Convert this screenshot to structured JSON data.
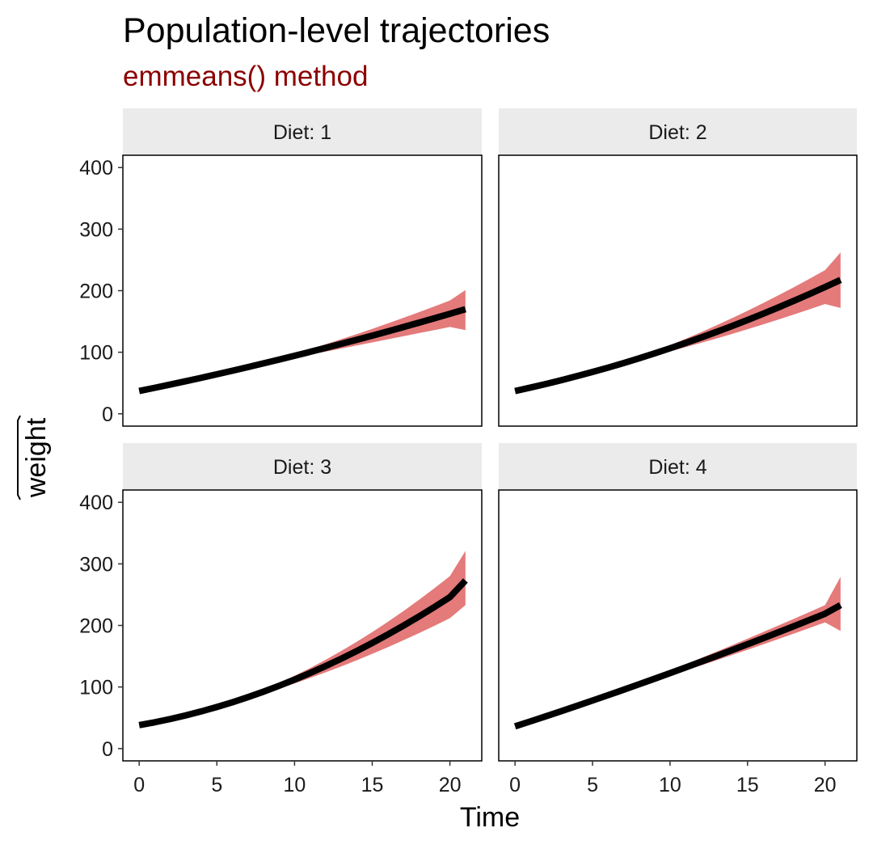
{
  "chart_data": {
    "type": "line",
    "title": "Population-level trajectories",
    "subtitle": "emmeans() method",
    "xlabel": "Time",
    "ylabel": "weight",
    "xlim": [
      -1.05,
      22.05
    ],
    "ylim": [
      -20,
      420
    ],
    "x_ticks": [
      0,
      5,
      10,
      15,
      20
    ],
    "y_ticks": [
      0,
      100,
      200,
      300,
      400
    ],
    "facet_labels": [
      "Diet: 1",
      "Diet: 2",
      "Diet: 3",
      "Diet: 4"
    ],
    "grid": false,
    "legend": "none",
    "colors": {
      "line": "#000000",
      "ribbon": "#e47a7a",
      "strip": "#ebebeb",
      "subtitle": "#8b0000"
    },
    "x": [
      0,
      1,
      2,
      3,
      4,
      5,
      6,
      7,
      8,
      9,
      10,
      11,
      12,
      13,
      14,
      15,
      16,
      17,
      18,
      19,
      20,
      21
    ],
    "series": [
      {
        "facet": "Diet: 1",
        "values": [
          37.0,
          42.2,
          47.6,
          53.0,
          58.5,
          64.2,
          70.0,
          75.9,
          81.9,
          88.0,
          94.3,
          100.6,
          107.0,
          113.6,
          120.2,
          127.0,
          133.9,
          140.9,
          148.0,
          155.2,
          162.5,
          169.9
        ],
        "lower": [
          37.0,
          42.2,
          47.6,
          53.0,
          58.5,
          64.2,
          70.0,
          75.9,
          81.2,
          86.0,
          91.0,
          96.0,
          101.0,
          106.0,
          111.0,
          116.0,
          121.0,
          126.0,
          131.0,
          136.0,
          141.0,
          136.0
        ],
        "upper": [
          37.0,
          42.2,
          47.6,
          53.0,
          58.5,
          64.2,
          70.0,
          75.9,
          82.6,
          90.0,
          97.6,
          105.2,
          113.0,
          121.2,
          129.4,
          138.0,
          146.8,
          155.8,
          165.0,
          174.4,
          184.0,
          201.0
        ]
      },
      {
        "facet": "Diet: 2",
        "values": [
          37.0,
          42.6,
          48.5,
          54.7,
          61.2,
          68.0,
          75.0,
          82.4,
          90.1,
          98.1,
          106.4,
          115.0,
          123.9,
          133.1,
          142.6,
          152.4,
          162.5,
          172.9,
          183.6,
          194.6,
          205.9,
          217.5
        ],
        "lower": [
          37.0,
          42.6,
          48.5,
          54.7,
          61.2,
          68.0,
          75.0,
          81.6,
          88.0,
          94.6,
          101.4,
          108.2,
          115.2,
          122.4,
          129.8,
          137.4,
          145.2,
          153.2,
          161.4,
          169.8,
          178.4,
          172.0
        ],
        "upper": [
          37.0,
          42.6,
          48.5,
          54.7,
          61.2,
          68.0,
          75.0,
          83.2,
          92.2,
          101.6,
          111.4,
          121.8,
          132.6,
          143.8,
          155.4,
          167.4,
          179.8,
          192.6,
          205.8,
          219.4,
          233.4,
          262.0
        ]
      },
      {
        "facet": "Diet: 3",
        "values": [
          38.0,
          42.7,
          48.0,
          53.9,
          60.4,
          67.5,
          75.2,
          83.5,
          92.4,
          101.9,
          112.0,
          122.7,
          134.0,
          145.9,
          158.4,
          171.5,
          185.2,
          199.5,
          214.4,
          229.9,
          246.0,
          273.0
        ],
        "lower": [
          38.0,
          42.7,
          48.0,
          53.9,
          60.4,
          67.5,
          74.5,
          81.8,
          89.4,
          97.4,
          105.8,
          114.6,
          123.8,
          133.4,
          143.4,
          153.8,
          164.6,
          175.8,
          187.4,
          199.4,
          211.8,
          233.0
        ],
        "upper": [
          38.0,
          42.7,
          48.0,
          53.9,
          60.4,
          67.5,
          75.9,
          85.2,
          95.4,
          106.4,
          118.2,
          130.8,
          144.2,
          158.4,
          173.4,
          189.2,
          205.8,
          223.2,
          241.4,
          260.4,
          280.2,
          321.0
        ]
      },
      {
        "facet": "Diet: 4",
        "values": [
          36.0,
          44.2,
          52.5,
          60.9,
          69.4,
          78.0,
          86.7,
          95.5,
          104.4,
          113.4,
          122.5,
          131.7,
          141.0,
          150.4,
          159.9,
          169.5,
          179.2,
          189.0,
          198.9,
          208.9,
          219.0,
          233.0
        ],
        "lower": [
          36.0,
          44.2,
          52.5,
          60.9,
          69.4,
          78.0,
          86.7,
          94.5,
          102.4,
          110.4,
          118.5,
          126.7,
          135.0,
          143.4,
          151.9,
          160.5,
          169.2,
          178.0,
          186.9,
          195.9,
          205.0,
          191.0
        ],
        "upper": [
          36.0,
          44.2,
          52.5,
          60.9,
          69.4,
          78.0,
          86.7,
          96.5,
          106.4,
          116.4,
          126.5,
          136.7,
          147.0,
          157.4,
          167.9,
          178.5,
          189.2,
          200.0,
          210.9,
          221.9,
          233.0,
          279.0
        ]
      }
    ]
  }
}
